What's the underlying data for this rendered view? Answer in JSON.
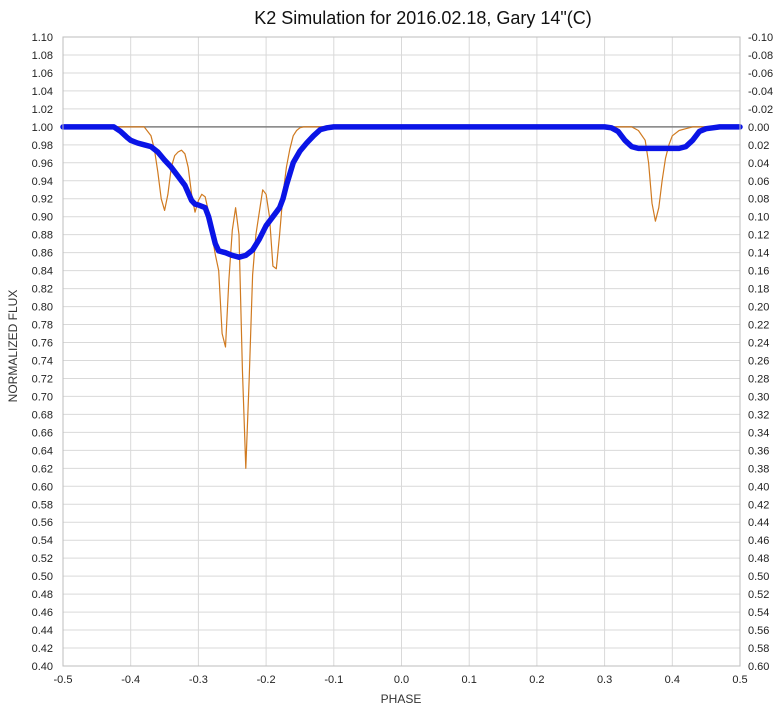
{
  "chart_data": {
    "type": "line",
    "title": "K2 Simulation for 2016.02.18, Gary 14\"(C)",
    "xlabel": "PHASE",
    "ylabel": "NORMALIZED FLUX",
    "xlim": [
      -0.5,
      0.5
    ],
    "xticks": [
      "-0.5",
      "-0.4",
      "-0.3",
      "-0.2",
      "-0.1",
      "0.0",
      "0.1",
      "0.2",
      "0.3",
      "0.4",
      "0.5"
    ],
    "ylim": [
      0.4,
      1.1
    ],
    "yticks_left": [
      "1.10",
      "1.08",
      "1.06",
      "1.04",
      "1.02",
      "1.00",
      "0.98",
      "0.96",
      "0.94",
      "0.92",
      "0.90",
      "0.88",
      "0.86",
      "0.84",
      "0.82",
      "0.80",
      "0.78",
      "0.76",
      "0.74",
      "0.72",
      "0.70",
      "0.68",
      "0.66",
      "0.64",
      "0.62",
      "0.60",
      "0.58",
      "0.56",
      "0.54",
      "0.52",
      "0.50",
      "0.48",
      "0.46",
      "0.44",
      "0.42",
      "0.40"
    ],
    "yticks_right": [
      "-0.10",
      "-0.08",
      "-0.06",
      "-0.04",
      "-0.02",
      "0.00",
      "0.02",
      "0.04",
      "0.06",
      "0.08",
      "0.10",
      "0.12",
      "0.14",
      "0.16",
      "0.18",
      "0.20",
      "0.22",
      "0.24",
      "0.26",
      "0.28",
      "0.30",
      "0.32",
      "0.34",
      "0.36",
      "0.38",
      "0.40",
      "0.42",
      "0.44",
      "0.46",
      "0.48",
      "0.50",
      "0.52",
      "0.54",
      "0.56",
      "0.58",
      "0.60"
    ],
    "reference_line_y": 1.0,
    "grid": true,
    "series": [
      {
        "color": "#d07a20",
        "x": [
          -0.5,
          -0.38,
          -0.37,
          -0.365,
          -0.36,
          -0.355,
          -0.35,
          -0.345,
          -0.34,
          -0.335,
          -0.33,
          -0.325,
          -0.32,
          -0.315,
          -0.31,
          -0.305,
          -0.3,
          -0.295,
          -0.29,
          -0.285,
          -0.28,
          -0.275,
          -0.27,
          -0.265,
          -0.26,
          -0.255,
          -0.25,
          -0.245,
          -0.24,
          -0.235,
          -0.23,
          -0.225,
          -0.22,
          -0.215,
          -0.21,
          -0.205,
          -0.2,
          -0.195,
          -0.19,
          -0.185,
          -0.18,
          -0.175,
          -0.17,
          -0.165,
          -0.16,
          -0.155,
          -0.15,
          -0.145,
          -0.14,
          -0.13,
          -0.12,
          0.3,
          0.34,
          0.35,
          0.36,
          0.365,
          0.37,
          0.375,
          0.38,
          0.385,
          0.39,
          0.395,
          0.4,
          0.41,
          0.42,
          0.43,
          0.44,
          0.46,
          0.48,
          0.5
        ],
        "y": [
          1.0,
          1.0,
          0.99,
          0.975,
          0.95,
          0.92,
          0.907,
          0.925,
          0.955,
          0.968,
          0.972,
          0.974,
          0.97,
          0.955,
          0.925,
          0.905,
          0.918,
          0.925,
          0.922,
          0.905,
          0.88,
          0.858,
          0.84,
          0.77,
          0.755,
          0.83,
          0.885,
          0.91,
          0.88,
          0.73,
          0.62,
          0.72,
          0.835,
          0.88,
          0.905,
          0.93,
          0.925,
          0.9,
          0.845,
          0.842,
          0.88,
          0.925,
          0.955,
          0.975,
          0.99,
          0.996,
          0.999,
          1.0,
          1.0,
          1.0,
          1.0,
          1.0,
          1.0,
          0.996,
          0.985,
          0.96,
          0.915,
          0.895,
          0.91,
          0.94,
          0.965,
          0.98,
          0.99,
          0.996,
          0.998,
          1.0,
          1.0,
          1.0,
          1.0,
          1.0
        ]
      },
      {
        "color": "#0a14e6",
        "x": [
          -0.5,
          -0.425,
          -0.415,
          -0.405,
          -0.4,
          -0.39,
          -0.38,
          -0.37,
          -0.36,
          -0.35,
          -0.34,
          -0.33,
          -0.32,
          -0.31,
          -0.305,
          -0.3,
          -0.29,
          -0.285,
          -0.28,
          -0.275,
          -0.27,
          -0.26,
          -0.25,
          -0.24,
          -0.23,
          -0.22,
          -0.21,
          -0.2,
          -0.19,
          -0.18,
          -0.175,
          -0.17,
          -0.16,
          -0.15,
          -0.14,
          -0.13,
          -0.12,
          -0.11,
          -0.1,
          0.3,
          0.31,
          0.32,
          0.33,
          0.34,
          0.35,
          0.36,
          0.37,
          0.38,
          0.4,
          0.41,
          0.42,
          0.43,
          0.44,
          0.45,
          0.46,
          0.47,
          0.5
        ],
        "y": [
          1.0,
          1.0,
          0.995,
          0.988,
          0.985,
          0.982,
          0.98,
          0.978,
          0.972,
          0.963,
          0.955,
          0.945,
          0.935,
          0.918,
          0.914,
          0.913,
          0.91,
          0.9,
          0.885,
          0.87,
          0.862,
          0.86,
          0.857,
          0.855,
          0.857,
          0.863,
          0.875,
          0.89,
          0.9,
          0.91,
          0.92,
          0.935,
          0.96,
          0.973,
          0.982,
          0.99,
          0.997,
          0.999,
          1.0,
          1.0,
          0.999,
          0.995,
          0.985,
          0.978,
          0.976,
          0.976,
          0.976,
          0.976,
          0.976,
          0.976,
          0.978,
          0.985,
          0.995,
          0.998,
          0.999,
          1.0,
          1.0
        ]
      }
    ]
  }
}
